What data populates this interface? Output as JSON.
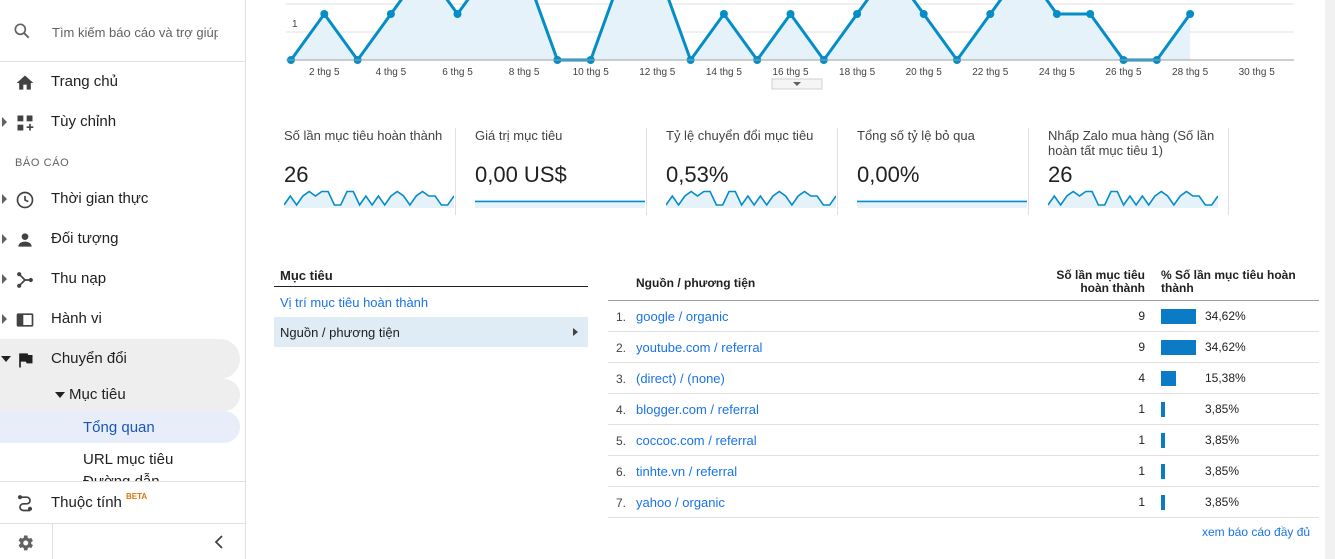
{
  "search": {
    "placeholder": "Tìm kiếm báo cáo và trợ giúp"
  },
  "sidebar": {
    "top_items": [
      {
        "label": "Trang chủ",
        "icon": "home-icon"
      },
      {
        "label": "Tùy chỉnh",
        "icon": "dashboard-icon"
      }
    ],
    "section_label": "BÁO CÁO",
    "report_items": [
      {
        "label": "Thời gian thực",
        "icon": "clock-icon"
      },
      {
        "label": "Đối tượng",
        "icon": "person-icon"
      },
      {
        "label": "Thu nạp",
        "icon": "acquisition-icon"
      },
      {
        "label": "Hành vi",
        "icon": "behavior-icon"
      },
      {
        "label": "Chuyển đổi",
        "icon": "flag-icon"
      }
    ],
    "sub_goal": "Mục tiêu",
    "sub_overview": "Tổng quan",
    "sub_url": "URL mục tiêu",
    "sub_clipped": "Đường dẫn",
    "property": {
      "label": "Thuộc tính",
      "badge": "BETA"
    }
  },
  "chart": {
    "y_tick": "1",
    "x_labels": [
      "2 thg 5",
      "4 thg 5",
      "6 thg 5",
      "8 thg 5",
      "10 thg 5",
      "12 thg 5",
      "14 thg 5",
      "16 thg 5",
      "18 thg 5",
      "20 thg 5",
      "22 thg 5",
      "24 thg 5",
      "26 thg 5",
      "28 thg 5",
      "30 thg 5"
    ],
    "values": [
      0,
      1,
      0,
      1,
      2,
      1,
      2,
      2,
      0,
      0,
      2,
      2,
      0,
      1,
      0,
      1,
      0,
      1,
      2,
      1,
      0,
      1,
      2,
      1,
      1,
      0,
      0,
      1
    ],
    "color": "#058dc7",
    "fill": "#e6f2f9"
  },
  "metrics": [
    {
      "name": "Số lần mục tiêu hoàn thành",
      "value": "26"
    },
    {
      "name": "Giá trị mục tiêu",
      "value": "0,00 US$"
    },
    {
      "name": "Tỷ lệ chuyển đổi mục tiêu",
      "value": "0,53%"
    },
    {
      "name": "Tổng số tỷ lệ bỏ qua",
      "value": "0,00%"
    },
    {
      "name": "Nhấp Zalo mua hàng (Số lần hoàn tất mục tiêu 1)",
      "value": "26"
    }
  ],
  "dimension_panel": {
    "title": "Mục tiêu",
    "link": "Vị trí mục tiêu hoàn thành",
    "selected": "Nguồn / phương tiện"
  },
  "table": {
    "headers": {
      "source": "Nguồn / phương tiện",
      "completions": "Số lần mục tiêu hoàn thành",
      "percent": "% Số lần mục tiêu hoàn thành"
    },
    "rows": [
      {
        "index": "1.",
        "source": "google / organic",
        "completions": "9",
        "percent": "34,62%",
        "share": 0.3462
      },
      {
        "index": "2.",
        "source": "youtube.com / referral",
        "completions": "9",
        "percent": "34,62%",
        "share": 0.3462
      },
      {
        "index": "3.",
        "source": "(direct) / (none)",
        "completions": "4",
        "percent": "15,38%",
        "share": 0.1538
      },
      {
        "index": "4.",
        "source": "blogger.com / referral",
        "completions": "1",
        "percent": "3,85%",
        "share": 0.0385
      },
      {
        "index": "5.",
        "source": "coccoc.com / referral",
        "completions": "1",
        "percent": "3,85%",
        "share": 0.0385
      },
      {
        "index": "6.",
        "source": "tinhte.vn / referral",
        "completions": "1",
        "percent": "3,85%",
        "share": 0.0385
      },
      {
        "index": "7.",
        "source": "yahoo / organic",
        "completions": "1",
        "percent": "3,85%",
        "share": 0.0385
      }
    ],
    "more_link": "xem báo cáo đầy đủ"
  }
}
